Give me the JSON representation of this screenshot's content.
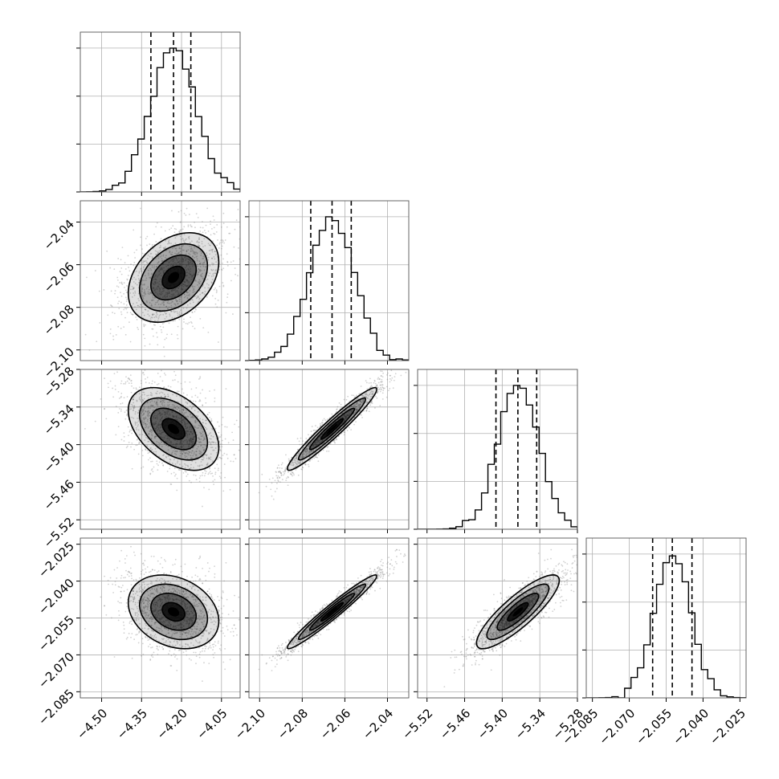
{
  "chart_data": {
    "type": "corner",
    "parameters": [
      {
        "id": "p0",
        "mean": -4.23,
        "std": 0.085,
        "range": [
          -4.58,
          -3.98
        ],
        "ticks": [
          -4.5,
          -4.35,
          -4.2,
          -4.05
        ],
        "tick_labels": [
          "−4.50",
          "−4.35",
          "−4.20",
          "−4.05"
        ],
        "quantiles": [
          -4.315,
          -4.23,
          -4.165
        ]
      },
      {
        "id": "p1",
        "mean": -2.066,
        "std": 0.0105,
        "range": [
          -2.105,
          -2.03
        ],
        "ticks": [
          -2.1,
          -2.08,
          -2.06,
          -2.04
        ],
        "tick_labels": [
          "−2.10",
          "−2.08",
          "−2.06",
          "−2.04"
        ],
        "quantiles": [
          -2.076,
          -2.066,
          -2.057
        ]
      },
      {
        "id": "p2",
        "mean": -5.375,
        "std": 0.033,
        "range": [
          -5.535,
          -5.28
        ],
        "ticks": [
          -5.52,
          -5.46,
          -5.4,
          -5.34,
          -5.28
        ],
        "tick_labels": [
          "−5.52",
          "−5.46",
          "−5.40",
          "−5.34",
          "−5.28"
        ],
        "quantiles": [
          -5.41,
          -5.375,
          -5.345
        ]
      },
      {
        "id": "p3",
        "mean": -2.0525,
        "std": 0.0075,
        "range": [
          -2.0875,
          -2.0225
        ],
        "ticks": [
          -2.085,
          -2.07,
          -2.055,
          -2.04,
          -2.025
        ],
        "tick_labels": [
          "−2.085",
          "−2.070",
          "−2.055",
          "−2.040",
          "−2.025"
        ],
        "quantiles": [
          -2.0605,
          -2.0525,
          -2.0445
        ]
      }
    ],
    "correlations": [
      [
        1.0,
        0.35,
        -0.45,
        -0.25
      ],
      [
        0.35,
        1.0,
        0.96,
        0.97
      ],
      [
        -0.45,
        0.96,
        1.0,
        0.85
      ],
      [
        -0.25,
        0.97,
        0.85,
        1.0
      ]
    ],
    "contour_levels_sigma": [
      0.5,
      1.0,
      1.5,
      2.0
    ],
    "grid": true,
    "colors": {
      "line": "#000000",
      "points": "#7f7f7f",
      "grid": "#b0b0b0"
    }
  }
}
